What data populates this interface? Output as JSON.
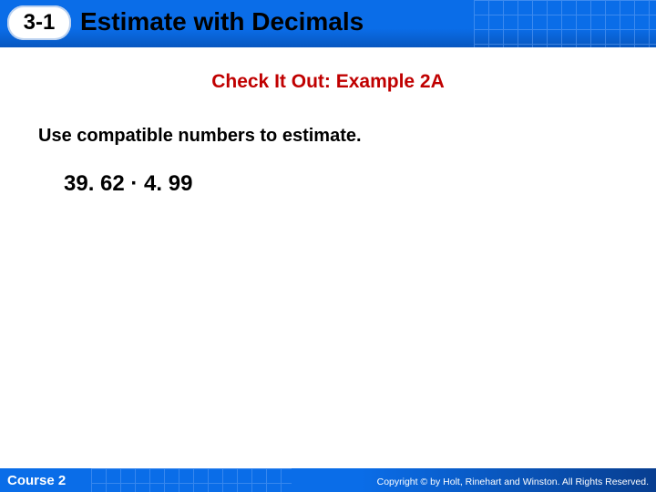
{
  "header": {
    "section_number": "3-1",
    "title": "Estimate with Decimals",
    "band_color": "#0a6de8",
    "grid_color": "#6fa8f7"
  },
  "subtitle": {
    "text": "Check It Out: Example 2A",
    "color": "#c00000",
    "fontsize": 21
  },
  "instruction": {
    "text": "Use compatible numbers to estimate.",
    "color": "#000000",
    "fontsize": 20
  },
  "expression": {
    "text": "39. 62 · 4. 99",
    "color": "#000000",
    "fontsize": 24
  },
  "footer": {
    "course_label": "Course 2",
    "copyright": "Copyright © by Holt, Rinehart and Winston. All Rights Reserved.",
    "band_color": "#0a6de8"
  }
}
